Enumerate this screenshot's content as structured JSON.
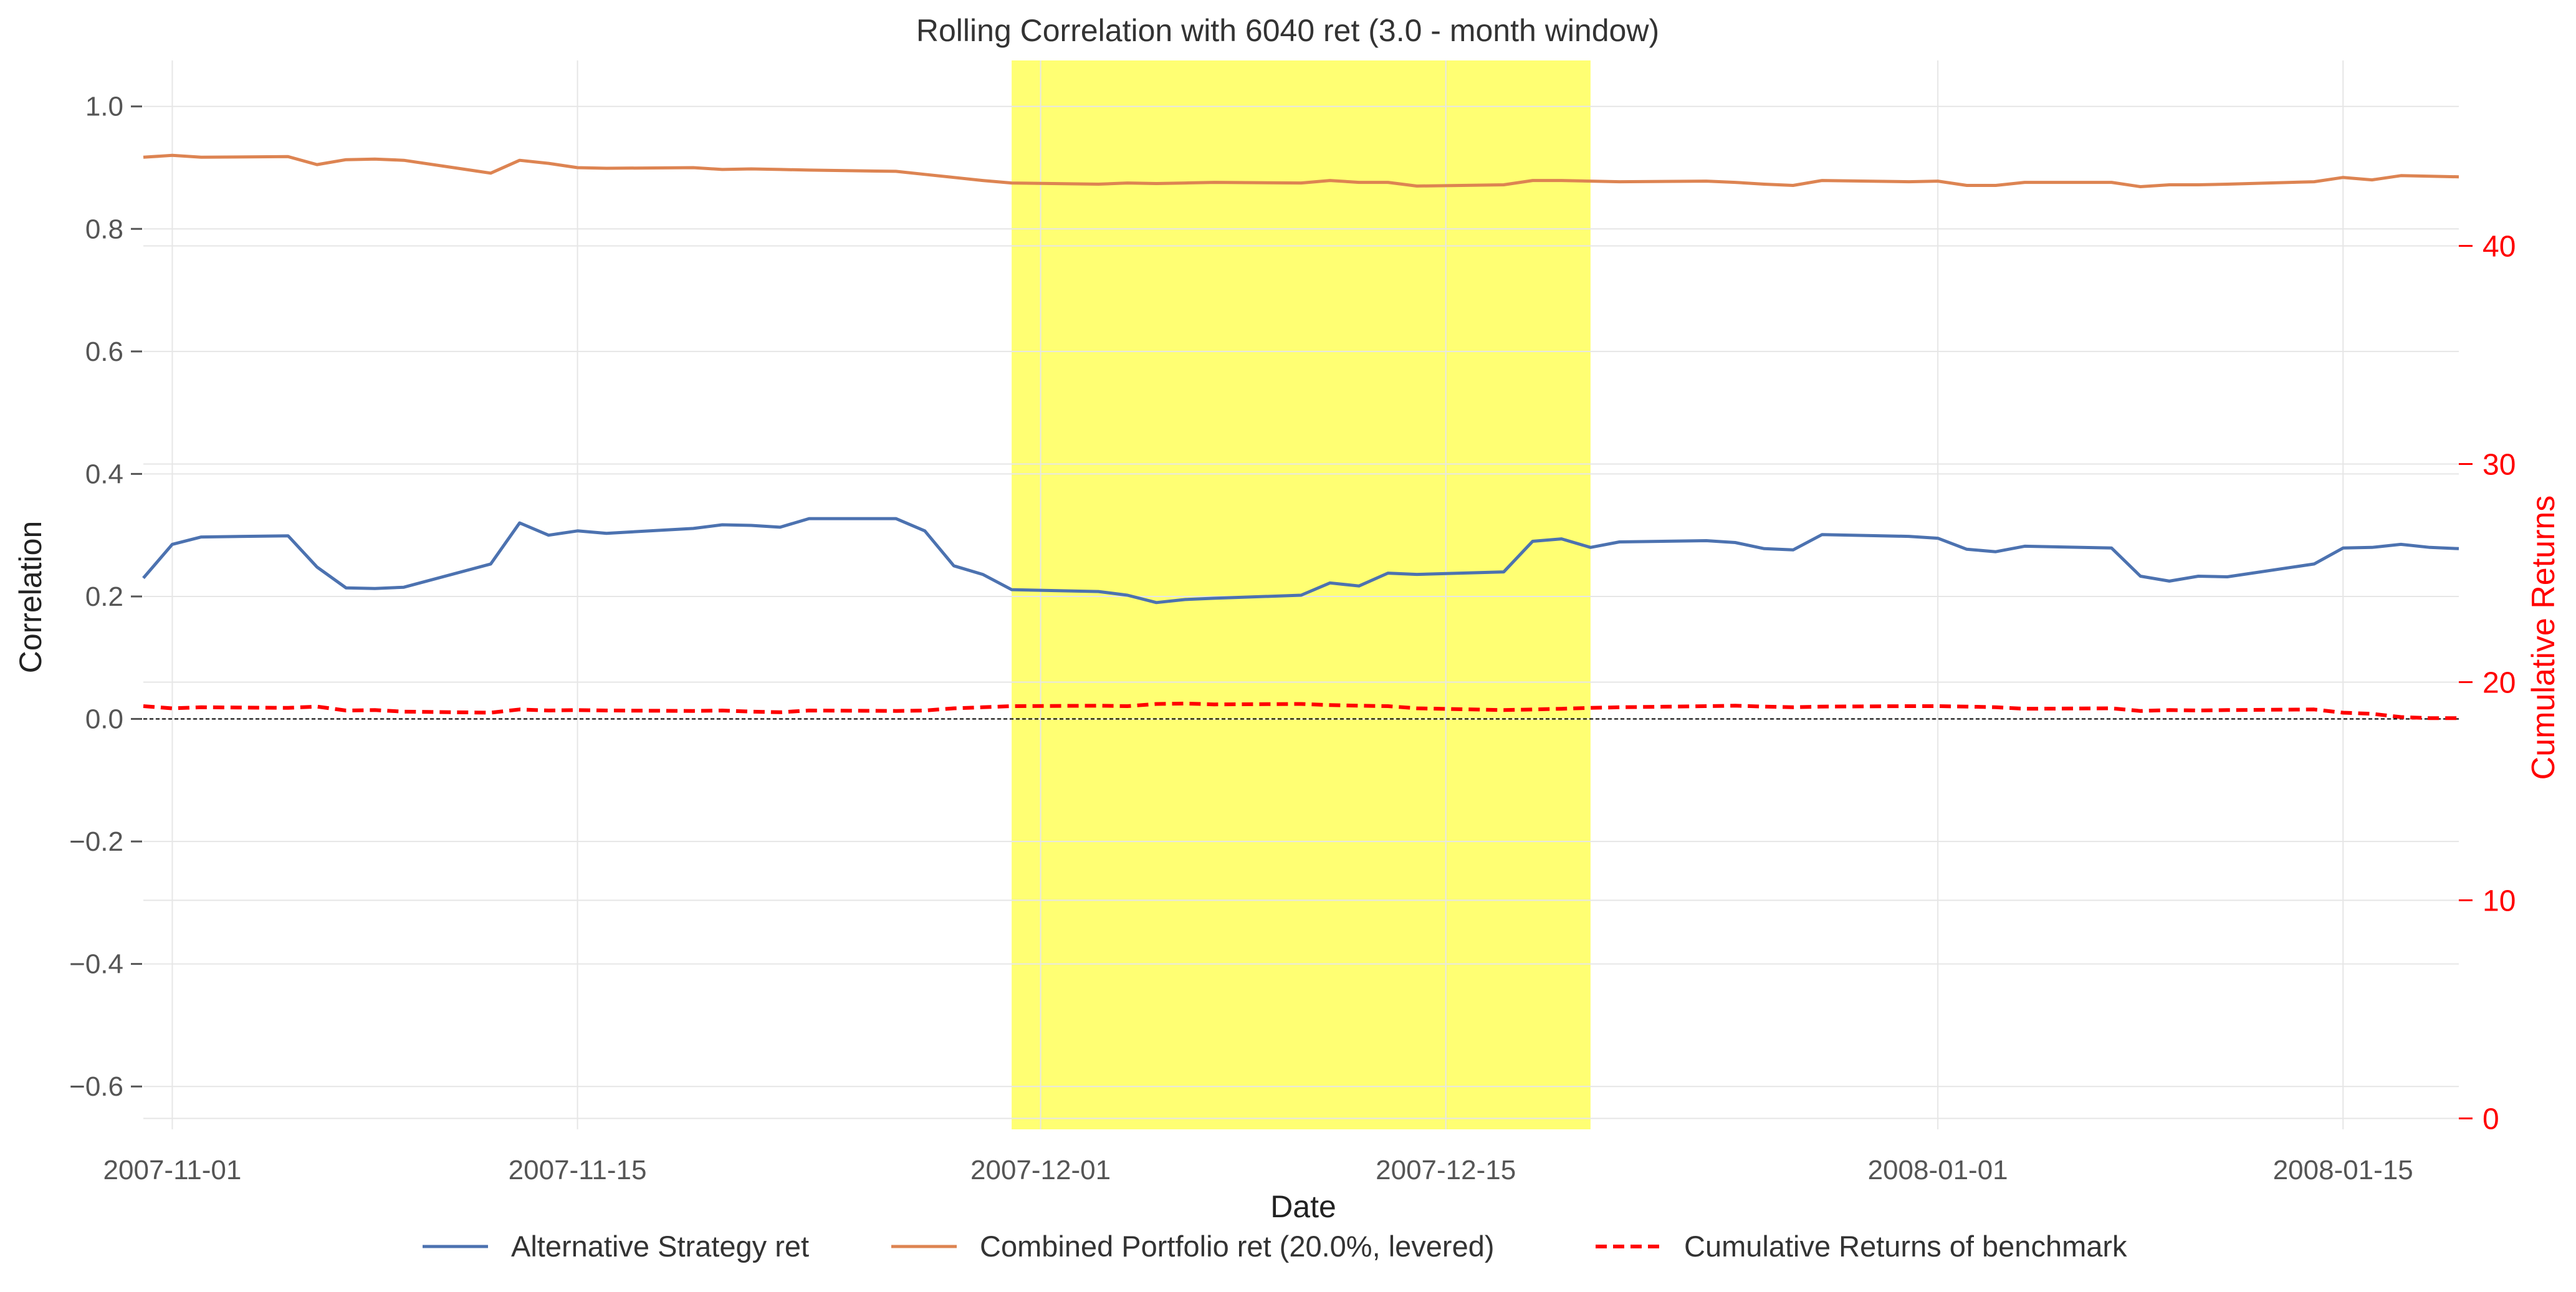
{
  "chart_data": {
    "type": "line",
    "title": "Rolling Correlation with 6040 ret (3.0 - month window)",
    "xlabel": "Date",
    "ylabel": "Correlation",
    "ylabel_right": "Cumulative Returns",
    "xlim": [
      "2007-10-31",
      "2008-01-19"
    ],
    "ylim": [
      -0.67,
      1.075
    ],
    "ylim_right": [
      -0.5,
      48.5
    ],
    "x_ticks": [
      "2007-11-01",
      "2007-11-15",
      "2007-12-01",
      "2007-12-15",
      "2008-01-01",
      "2008-01-15"
    ],
    "y_ticks": [
      -0.6,
      -0.4,
      -0.2,
      0.0,
      0.2,
      0.4,
      0.6,
      0.8,
      1.0
    ],
    "y_tick_labels": [
      "−0.6",
      "−0.4",
      "−0.2",
      "0.0",
      "0.2",
      "0.4",
      "0.6",
      "0.8",
      "1.0"
    ],
    "y_ticks_right": [
      0,
      10,
      20,
      30,
      40
    ],
    "y_tick_labels_right": [
      "0",
      "10",
      "20",
      "30",
      "40"
    ],
    "grid": true,
    "zero_line": true,
    "highlight": {
      "start": "2007-11-30",
      "end": "2007-12-20",
      "color": "#ffff00",
      "opacity": 0.55
    },
    "legend_position": "bottom-center",
    "series": [
      {
        "name": "Alternative Strategy ret",
        "axis": "left",
        "color": "#4c72b0",
        "style": "solid",
        "points": [
          [
            "2007-10-31",
            0.23
          ],
          [
            "2007-11-01",
            0.285
          ],
          [
            "2007-11-02",
            0.297
          ],
          [
            "2007-11-05",
            0.299
          ],
          [
            "2007-11-06",
            0.248
          ],
          [
            "2007-11-07",
            0.214
          ],
          [
            "2007-11-08",
            0.213
          ],
          [
            "2007-11-09",
            0.215
          ],
          [
            "2007-11-12",
            0.253
          ],
          [
            "2007-11-13",
            0.32
          ],
          [
            "2007-11-14",
            0.3
          ],
          [
            "2007-11-15",
            0.307
          ],
          [
            "2007-11-16",
            0.303
          ],
          [
            "2007-11-19",
            0.311
          ],
          [
            "2007-11-20",
            0.317
          ],
          [
            "2007-11-21",
            0.316
          ],
          [
            "2007-11-22",
            0.313
          ],
          [
            "2007-11-23",
            0.327
          ],
          [
            "2007-11-26",
            0.327
          ],
          [
            "2007-11-27",
            0.307
          ],
          [
            "2007-11-28",
            0.25
          ],
          [
            "2007-11-29",
            0.236
          ],
          [
            "2007-11-30",
            0.211
          ],
          [
            "2007-12-03",
            0.208
          ],
          [
            "2007-12-04",
            0.202
          ],
          [
            "2007-12-05",
            0.19
          ],
          [
            "2007-12-06",
            0.195
          ],
          [
            "2007-12-07",
            0.197
          ],
          [
            "2007-12-10",
            0.202
          ],
          [
            "2007-12-11",
            0.222
          ],
          [
            "2007-12-12",
            0.217
          ],
          [
            "2007-12-13",
            0.238
          ],
          [
            "2007-12-14",
            0.236
          ],
          [
            "2007-12-17",
            0.24
          ],
          [
            "2007-12-18",
            0.29
          ],
          [
            "2007-12-19",
            0.294
          ],
          [
            "2007-12-20",
            0.28
          ],
          [
            "2007-12-21",
            0.289
          ],
          [
            "2007-12-24",
            0.291
          ],
          [
            "2007-12-25",
            0.288
          ],
          [
            "2007-12-26",
            0.278
          ],
          [
            "2007-12-27",
            0.276
          ],
          [
            "2007-12-28",
            0.301
          ],
          [
            "2007-12-31",
            0.298
          ],
          [
            "2008-01-01",
            0.295
          ],
          [
            "2008-01-02",
            0.277
          ],
          [
            "2008-01-03",
            0.273
          ],
          [
            "2008-01-04",
            0.282
          ],
          [
            "2008-01-07",
            0.279
          ],
          [
            "2008-01-08",
            0.233
          ],
          [
            "2008-01-09",
            0.225
          ],
          [
            "2008-01-10",
            0.233
          ],
          [
            "2008-01-11",
            0.232
          ],
          [
            "2008-01-14",
            0.253
          ],
          [
            "2008-01-15",
            0.279
          ],
          [
            "2008-01-16",
            0.28
          ],
          [
            "2008-01-17",
            0.285
          ],
          [
            "2008-01-18",
            0.28
          ],
          [
            "2008-01-19",
            0.278
          ]
        ]
      },
      {
        "name": "Combined Portfolio ret (20.0%, levered)",
        "axis": "left",
        "color": "#dd8452",
        "style": "solid",
        "points": [
          [
            "2007-10-31",
            0.917
          ],
          [
            "2007-11-01",
            0.92
          ],
          [
            "2007-11-02",
            0.917
          ],
          [
            "2007-11-05",
            0.918
          ],
          [
            "2007-11-06",
            0.905
          ],
          [
            "2007-11-07",
            0.913
          ],
          [
            "2007-11-08",
            0.914
          ],
          [
            "2007-11-09",
            0.912
          ],
          [
            "2007-11-12",
            0.891
          ],
          [
            "2007-11-13",
            0.912
          ],
          [
            "2007-11-14",
            0.907
          ],
          [
            "2007-11-15",
            0.9
          ],
          [
            "2007-11-16",
            0.899
          ],
          [
            "2007-11-19",
            0.9
          ],
          [
            "2007-11-20",
            0.897
          ],
          [
            "2007-11-21",
            0.898
          ],
          [
            "2007-11-22",
            0.897
          ],
          [
            "2007-11-23",
            0.896
          ],
          [
            "2007-11-26",
            0.894
          ],
          [
            "2007-11-27",
            0.889
          ],
          [
            "2007-11-28",
            0.884
          ],
          [
            "2007-11-29",
            0.879
          ],
          [
            "2007-11-30",
            0.875
          ],
          [
            "2007-12-03",
            0.873
          ],
          [
            "2007-12-04",
            0.875
          ],
          [
            "2007-12-05",
            0.874
          ],
          [
            "2007-12-06",
            0.875
          ],
          [
            "2007-12-07",
            0.876
          ],
          [
            "2007-12-10",
            0.875
          ],
          [
            "2007-12-11",
            0.879
          ],
          [
            "2007-12-12",
            0.876
          ],
          [
            "2007-12-13",
            0.876
          ],
          [
            "2007-12-14",
            0.87
          ],
          [
            "2007-12-17",
            0.872
          ],
          [
            "2007-12-18",
            0.879
          ],
          [
            "2007-12-19",
            0.879
          ],
          [
            "2007-12-20",
            0.878
          ],
          [
            "2007-12-21",
            0.877
          ],
          [
            "2007-12-24",
            0.878
          ],
          [
            "2007-12-25",
            0.876
          ],
          [
            "2007-12-26",
            0.873
          ],
          [
            "2007-12-27",
            0.871
          ],
          [
            "2007-12-28",
            0.879
          ],
          [
            "2007-12-31",
            0.877
          ],
          [
            "2008-01-01",
            0.878
          ],
          [
            "2008-01-02",
            0.871
          ],
          [
            "2008-01-03",
            0.871
          ],
          [
            "2008-01-04",
            0.876
          ],
          [
            "2008-01-07",
            0.876
          ],
          [
            "2008-01-08",
            0.869
          ],
          [
            "2008-01-09",
            0.872
          ],
          [
            "2008-01-10",
            0.872
          ],
          [
            "2008-01-11",
            0.873
          ],
          [
            "2008-01-14",
            0.877
          ],
          [
            "2008-01-15",
            0.884
          ],
          [
            "2008-01-16",
            0.88
          ],
          [
            "2008-01-17",
            0.887
          ],
          [
            "2008-01-18",
            0.886
          ],
          [
            "2008-01-19",
            0.885
          ]
        ]
      },
      {
        "name": "Cumulative Returns of benchmark",
        "axis": "right",
        "color": "#ff0000",
        "style": "dashed",
        "points": [
          [
            "2007-10-31",
            18.9
          ],
          [
            "2007-11-01",
            18.8
          ],
          [
            "2007-11-02",
            18.85
          ],
          [
            "2007-11-05",
            18.82
          ],
          [
            "2007-11-06",
            18.88
          ],
          [
            "2007-11-07",
            18.7
          ],
          [
            "2007-11-08",
            18.72
          ],
          [
            "2007-11-09",
            18.65
          ],
          [
            "2007-11-12",
            18.6
          ],
          [
            "2007-11-13",
            18.75
          ],
          [
            "2007-11-14",
            18.7
          ],
          [
            "2007-11-15",
            18.72
          ],
          [
            "2007-11-16",
            18.7
          ],
          [
            "2007-11-19",
            18.68
          ],
          [
            "2007-11-20",
            18.7
          ],
          [
            "2007-11-21",
            18.65
          ],
          [
            "2007-11-22",
            18.62
          ],
          [
            "2007-11-23",
            18.7
          ],
          [
            "2007-11-26",
            18.68
          ],
          [
            "2007-11-27",
            18.7
          ],
          [
            "2007-11-28",
            18.8
          ],
          [
            "2007-11-29",
            18.85
          ],
          [
            "2007-11-30",
            18.9
          ],
          [
            "2007-12-03",
            18.92
          ],
          [
            "2007-12-04",
            18.9
          ],
          [
            "2007-12-05",
            19.0
          ],
          [
            "2007-12-06",
            19.02
          ],
          [
            "2007-12-07",
            18.98
          ],
          [
            "2007-12-10",
            19.0
          ],
          [
            "2007-12-11",
            18.95
          ],
          [
            "2007-12-12",
            18.92
          ],
          [
            "2007-12-13",
            18.9
          ],
          [
            "2007-12-14",
            18.8
          ],
          [
            "2007-12-17",
            18.72
          ],
          [
            "2007-12-18",
            18.75
          ],
          [
            "2007-12-19",
            18.78
          ],
          [
            "2007-12-20",
            18.82
          ],
          [
            "2007-12-21",
            18.85
          ],
          [
            "2007-12-24",
            18.9
          ],
          [
            "2007-12-25",
            18.92
          ],
          [
            "2007-12-26",
            18.88
          ],
          [
            "2007-12-27",
            18.85
          ],
          [
            "2007-12-28",
            18.88
          ],
          [
            "2007-12-31",
            18.9
          ],
          [
            "2008-01-01",
            18.9
          ],
          [
            "2008-01-02",
            18.88
          ],
          [
            "2008-01-03",
            18.85
          ],
          [
            "2008-01-04",
            18.78
          ],
          [
            "2008-01-07",
            18.8
          ],
          [
            "2008-01-08",
            18.68
          ],
          [
            "2008-01-09",
            18.72
          ],
          [
            "2008-01-10",
            18.7
          ],
          [
            "2008-01-11",
            18.72
          ],
          [
            "2008-01-14",
            18.75
          ],
          [
            "2008-01-15",
            18.6
          ],
          [
            "2008-01-16",
            18.55
          ],
          [
            "2008-01-17",
            18.4
          ],
          [
            "2008-01-18",
            18.35
          ],
          [
            "2008-01-19",
            18.35
          ]
        ]
      }
    ]
  }
}
